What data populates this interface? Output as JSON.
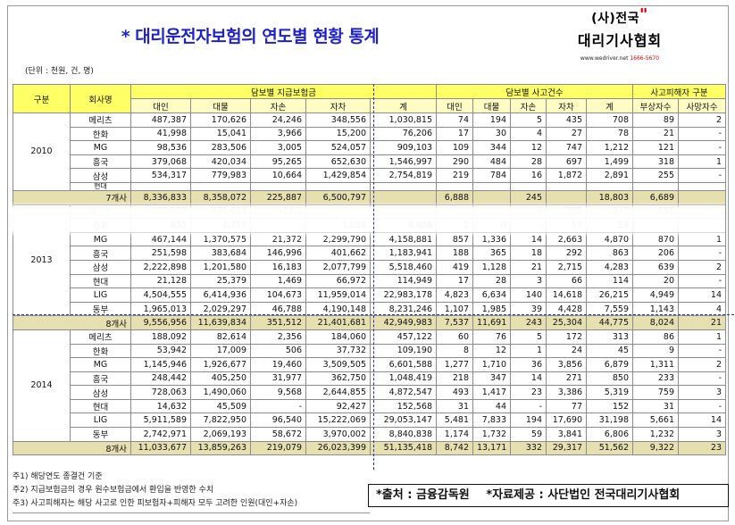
{
  "title": "* 대리운전자보험의 연도별 현황 통계",
  "logo": {
    "line1": "(사)전국",
    "quote": "\"",
    "line2": "대리기사협회",
    "url": "www.wedriver.net",
    "phone": "1666-5670"
  },
  "unit": "(단위 : 천원, 건, 명)",
  "table": {
    "headers": {
      "division": "구분",
      "insurer": "회사명",
      "group1": "담보별 지급보험금",
      "group2": "담보별 사고건수",
      "group3": "사고피해자 구분",
      "sub1": [
        "대인",
        "대물",
        "자손",
        "자차",
        "계"
      ],
      "sub2": [
        "대인",
        "대물",
        "자손",
        "자차",
        "계"
      ],
      "sub3": [
        "부상자수",
        "사망자수"
      ]
    },
    "y2010": {
      "year": "2010",
      "rows": [
        [
          "메리츠",
          "487,387",
          "170,626",
          "24,246",
          "348,556",
          "1,030,815",
          "74",
          "194",
          "5",
          "435",
          "708",
          "89",
          "2"
        ],
        [
          "한화",
          "41,998",
          "15,041",
          "3,966",
          "15,200",
          "76,206",
          "17",
          "30",
          "4",
          "27",
          "78",
          "21",
          "-"
        ],
        [
          "MG",
          "98,536",
          "283,506",
          "3,005",
          "524,057",
          "909,103",
          "109",
          "344",
          "12",
          "747",
          "1,212",
          "121",
          "-"
        ],
        [
          "흥국",
          "379,068",
          "420,034",
          "95,265",
          "652,630",
          "1,546,997",
          "290",
          "484",
          "28",
          "697",
          "1,499",
          "318",
          "1"
        ],
        [
          "삼성",
          "534,317",
          "779,983",
          "10,664",
          "1,429,854",
          "2,754,819",
          "219",
          "784",
          "16",
          "1,872",
          "2,891",
          "255",
          "-"
        ]
      ],
      "partial_row": "현대",
      "sum": [
        "7개사",
        "8,336,833",
        "8,358,072",
        "225,887",
        "6,500,797",
        "",
        "6,888",
        "",
        "245",
        "",
        "18,803",
        "6,689",
        ""
      ]
    },
    "y2013": {
      "year": "2013",
      "rows": [
        [
          "메리츠",
          "123,988",
          "271,664",
          "14,0",
          "",
          "",
          "",
          "",
          "8",
          "565",
          "847",
          "196",
          "-"
        ],
        [
          "한화",
          "631",
          "2,717",
          "-",
          "1,058",
          "4,406",
          "1",
          "6",
          "-",
          "17",
          "24",
          "",
          "-"
        ],
        [
          "MG",
          "467,144",
          "1,370,575",
          "21,372",
          "2,299,790",
          "4,158,881",
          "857",
          "1,336",
          "14",
          "2,663",
          "4,870",
          "870",
          "1"
        ],
        [
          "흥국",
          "251,598",
          "383,684",
          "146,996",
          "401,662",
          "1,183,941",
          "188",
          "365",
          "18",
          "292",
          "863",
          "206",
          "-"
        ],
        [
          "삼성",
          "2,222,898",
          "1,201,580",
          "16,183",
          "2,077,799",
          "5,518,460",
          "419",
          "1,128",
          "21",
          "2,715",
          "4,283",
          "639",
          "2"
        ],
        [
          "현대",
          "21,128",
          "25,379",
          "1,469",
          "66,972",
          "114,949",
          "17",
          "28",
          "3",
          "66",
          "114",
          "20",
          "-"
        ],
        [
          "LIG",
          "4,504,555",
          "6,414,936",
          "104,673",
          "11,959,014",
          "22,983,178",
          "4,823",
          "6,634",
          "140",
          "14,618",
          "26,215",
          "4,949",
          "14"
        ],
        [
          "동부",
          "1,965,013",
          "2,029,297",
          "46,788",
          "4,190,148",
          "8,231,246",
          "1,107",
          "1,985",
          "39",
          "4,428",
          "7,559",
          "1,143",
          "4"
        ]
      ],
      "sum": [
        "8개사",
        "9,556,956",
        "11,639,834",
        "351,512",
        "21,401,681",
        "42,949,983",
        "7,537",
        "11,691",
        "243",
        "25,304",
        "44,775",
        "8,024",
        "21"
      ]
    },
    "y2014": {
      "year": "2014",
      "rows": [
        [
          "메리츠",
          "188,092",
          "82,614",
          "2,356",
          "184,060",
          "457,122",
          "60",
          "76",
          "5",
          "172",
          "313",
          "86",
          "1"
        ],
        [
          "한화",
          "53,942",
          "17,009",
          "506",
          "37,732",
          "109,190",
          "8",
          "12",
          "1",
          "24",
          "45",
          "9",
          "-"
        ],
        [
          "MG",
          "1,145,946",
          "1,926,677",
          "19,460",
          "3,509,505",
          "6,601,588",
          "1,277",
          "1,710",
          "36",
          "3,856",
          "6,879",
          "1,311",
          "2"
        ],
        [
          "흥국",
          "248,442",
          "405,250",
          "31,977",
          "362,750",
          "1,048,419",
          "218",
          "347",
          "14",
          "271",
          "850",
          "233",
          "-"
        ],
        [
          "삼성",
          "728,063",
          "1,490,060",
          "9,568",
          "2,644,855",
          "4,872,547",
          "493",
          "1,417",
          "23",
          "3,386",
          "5,319",
          "759",
          "3"
        ],
        [
          "현대",
          "14,632",
          "45,509",
          "-",
          "92,427",
          "152,568",
          "31",
          "44",
          "-",
          "77",
          "152",
          "31",
          "-"
        ],
        [
          "LIG",
          "5,911,589",
          "7,822,950",
          "96,540",
          "15,222,069",
          "29,053,147",
          "5,481",
          "7,833",
          "194",
          "17,690",
          "31,198",
          "5,661",
          "14"
        ],
        [
          "동부",
          "2,742,971",
          "2,069,193",
          "58,672",
          "3,970,002",
          "8,840,838",
          "1,174",
          "1,732",
          "59",
          "3,841",
          "6,806",
          "1,232",
          "3"
        ]
      ],
      "sum": [
        "8개사",
        "11,033,677",
        "13,859,263",
        "219,079",
        "26,023,399",
        "51,135,418",
        "8,742",
        "13,171",
        "332",
        "29,317",
        "51,562",
        "9,322",
        "23"
      ]
    }
  },
  "notes": [
    "주1) 해당연도 종결건 기준",
    "주2) 지급보험금의 경우 원수보험금에서 환입을 반영한 수치",
    "주3) 사고피해자는 해당 사고로 인한 피보험자+피해자 모두 고려한 인원(대인+자손)"
  ],
  "source": {
    "publisher": "*출처 : 금융감독원",
    "provider": "*자료제공 : 사단법인 전국대리기사협회"
  }
}
